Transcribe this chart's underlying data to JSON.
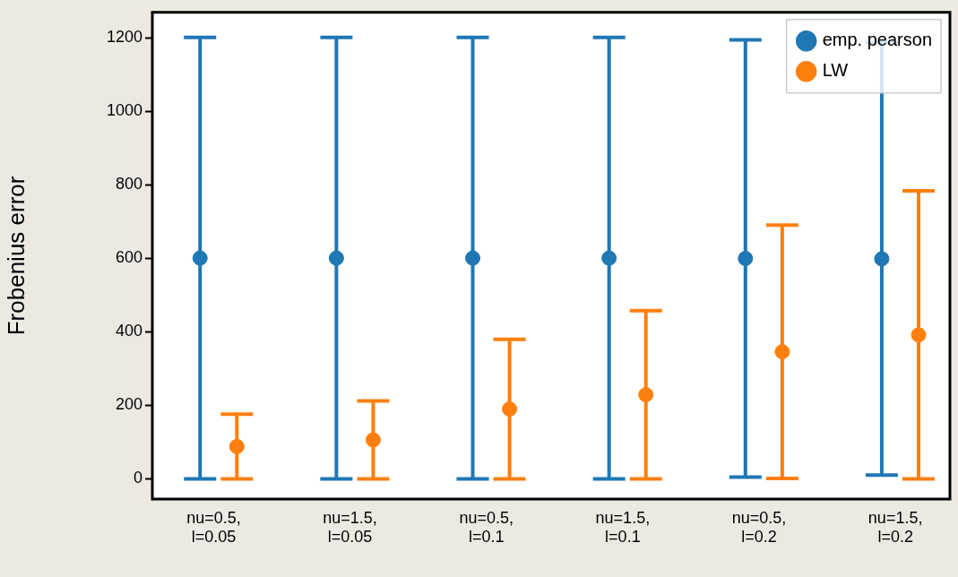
{
  "chart_data": {
    "type": "scatter",
    "ylabel": "Frobenius error",
    "categories": [
      "nu=0.5,\nl=0.05",
      "nu=1.5,\nl=0.05",
      "nu=0.5,\nl=0.1",
      "nu=1.5,\nl=0.1",
      "nu=0.5,\nl=0.2",
      "nu=1.5,\nl=0.2"
    ],
    "series": [
      {
        "name": "emp. pearson",
        "color": "#1f77b4",
        "values": [
          601,
          601,
          601,
          601,
          600,
          599
        ],
        "errors": [
          601,
          601,
          601,
          601,
          595,
          589
        ]
      },
      {
        "name": "LW",
        "color": "#ff7f0e",
        "values": [
          88,
          106,
          190,
          229,
          346,
          392
        ],
        "errors": [
          88,
          106,
          190,
          229,
          345,
          392
        ]
      }
    ],
    "ylim": [
      -55,
      1270
    ],
    "yticks": [
      0,
      200,
      400,
      600,
      800,
      1000,
      1200
    ],
    "grid": false,
    "legend": "top right",
    "marker": "circle"
  }
}
